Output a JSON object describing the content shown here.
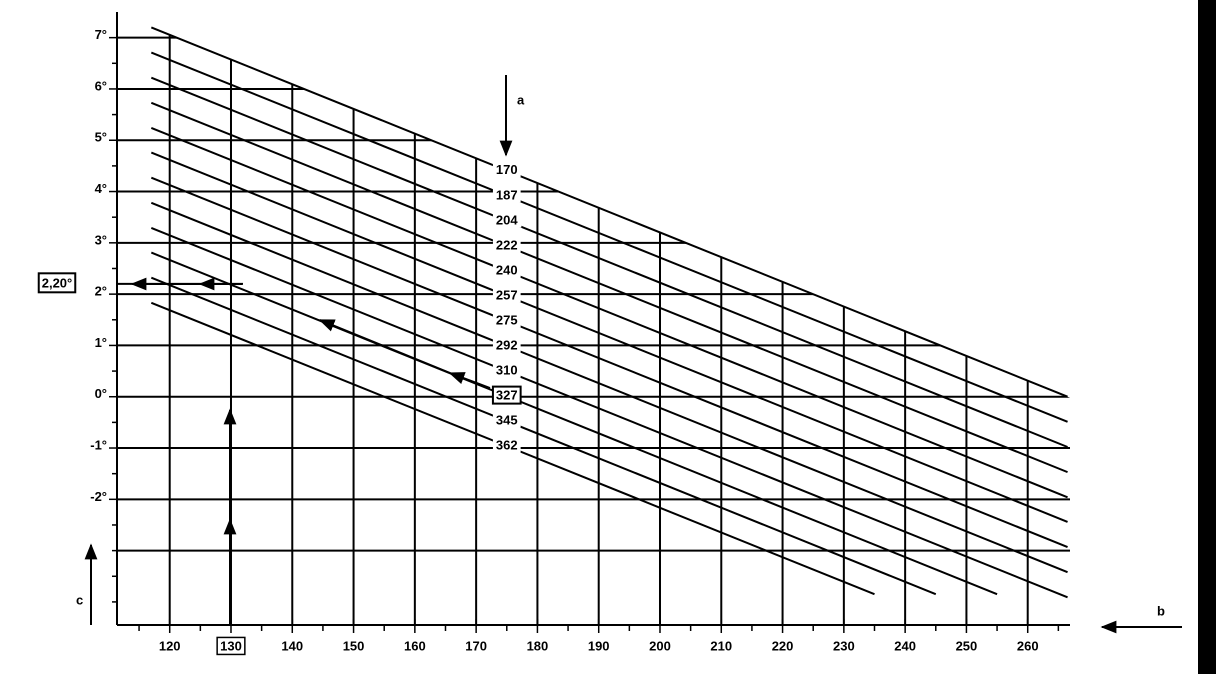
{
  "chart_data": {
    "type": "line",
    "series": [
      {
        "name": "170",
        "color": "#000000",
        "x": [
          117,
          266.5
        ],
        "values": [
          7.2,
          0.0
        ]
      },
      {
        "name": "187",
        "color": "#000000",
        "x": [
          117,
          266.5
        ],
        "values": [
          6.71,
          -0.49
        ]
      },
      {
        "name": "204",
        "color": "#000000",
        "x": [
          117,
          266.5
        ],
        "values": [
          6.22,
          -0.98
        ]
      },
      {
        "name": "222",
        "color": "#000000",
        "x": [
          117,
          266.5
        ],
        "values": [
          5.73,
          -1.47
        ]
      },
      {
        "name": "240",
        "color": "#000000",
        "x": [
          117,
          266.5
        ],
        "values": [
          5.24,
          -1.96
        ]
      },
      {
        "name": "257",
        "color": "#000000",
        "x": [
          117,
          266.5
        ],
        "values": [
          4.76,
          -2.44
        ]
      },
      {
        "name": "275",
        "color": "#000000",
        "x": [
          117,
          266.5
        ],
        "values": [
          4.27,
          -2.93
        ]
      },
      {
        "name": "292",
        "color": "#000000",
        "x": [
          117,
          266.5
        ],
        "values": [
          3.78,
          -3.42
        ]
      },
      {
        "name": "310",
        "color": "#000000",
        "x": [
          117,
          266.5
        ],
        "values": [
          3.29,
          -3.91
        ]
      },
      {
        "name": "327",
        "color": "#000000",
        "x": [
          117,
          255
        ],
        "values": [
          2.81,
          -3.85
        ],
        "highlight": true
      },
      {
        "name": "345",
        "color": "#000000",
        "x": [
          117,
          245
        ],
        "values": [
          2.32,
          -3.85
        ]
      },
      {
        "name": "362",
        "color": "#000000",
        "x": [
          117,
          235
        ],
        "values": [
          1.83,
          -3.85
        ]
      }
    ],
    "xlim": [
      111.4,
      266.9
    ],
    "ylim": [
      -4.45,
      7.5
    ],
    "xticks": [
      120,
      130,
      140,
      150,
      160,
      170,
      180,
      190,
      200,
      210,
      220,
      230,
      240,
      250,
      260
    ],
    "xticks_minor": [
      115,
      125,
      135,
      145,
      155,
      165,
      175,
      185,
      195,
      205,
      215,
      225,
      235,
      245,
      255,
      265
    ],
    "yticks": [
      {
        "value": 7,
        "label": "7°"
      },
      {
        "value": 6,
        "label": "6°"
      },
      {
        "value": 5,
        "label": "5°"
      },
      {
        "value": 4,
        "label": "4°"
      },
      {
        "value": 3,
        "label": "3°"
      },
      {
        "value": 2,
        "label": "2°"
      },
      {
        "value": 1,
        "label": "1°"
      },
      {
        "value": 0,
        "label": "0°"
      },
      {
        "value": -1,
        "label": "-1°"
      },
      {
        "value": -2,
        "label": "-2°"
      }
    ],
    "yticks_minor": [
      6.5,
      5.5,
      4.5,
      3.5,
      2.5,
      1.5,
      0.5,
      -0.5,
      -1.5,
      -2.5,
      -3,
      -3.5,
      -4
    ],
    "ygrid_extra": [
      -3
    ],
    "grid": true,
    "highlight_x": 130,
    "result": {
      "value": 2.2,
      "label": "2,20°"
    },
    "annotations": {
      "a": "a",
      "b": "b",
      "c": "c"
    }
  }
}
